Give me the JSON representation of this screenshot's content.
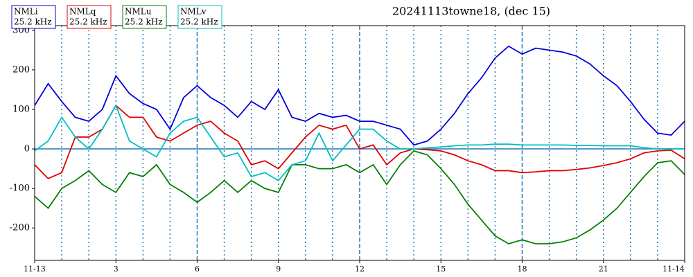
{
  "chart_data": {
    "type": "line",
    "title": "20241113towne18, (dec 15)",
    "x": [
      0,
      0.5,
      1,
      1.5,
      2,
      2.5,
      3,
      3.5,
      4,
      4.5,
      5,
      5.5,
      6,
      6.5,
      7,
      7.5,
      8,
      8.5,
      9,
      9.5,
      10,
      10.5,
      11,
      11.5,
      12,
      12.5,
      13,
      13.5,
      14,
      14.5,
      15,
      15.5,
      16,
      16.5,
      17,
      17.5,
      18,
      18.5,
      19,
      19.5,
      20,
      20.5,
      21,
      21.5,
      22,
      22.5,
      23,
      23.5,
      24
    ],
    "series": [
      {
        "name": "NMLi",
        "frequency": "25.2 kHz",
        "color": "#0000dd",
        "values": [
          110,
          165,
          120,
          80,
          70,
          100,
          185,
          140,
          115,
          100,
          50,
          130,
          160,
          130,
          110,
          80,
          120,
          100,
          150,
          80,
          70,
          90,
          80,
          85,
          70,
          70,
          60,
          50,
          10,
          20,
          50,
          90,
          140,
          180,
          230,
          260,
          240,
          255,
          250,
          245,
          235,
          215,
          185,
          160,
          120,
          75,
          40,
          35,
          70
        ]
      },
      {
        "name": "NMLq",
        "frequency": "25.2 kHz",
        "color": "#e00000",
        "values": [
          -40,
          -75,
          -60,
          30,
          30,
          50,
          110,
          80,
          80,
          30,
          20,
          40,
          60,
          70,
          40,
          20,
          -40,
          -30,
          -50,
          -10,
          30,
          60,
          50,
          60,
          0,
          10,
          -40,
          -10,
          0,
          -2,
          -5,
          -15,
          -30,
          -40,
          -55,
          -55,
          -60,
          -58,
          -55,
          -55,
          -52,
          -48,
          -42,
          -35,
          -25,
          -10,
          -5,
          -3,
          -25
        ]
      },
      {
        "name": "NMLu",
        "frequency": "25.2 kHz",
        "color": "#008000",
        "values": [
          -120,
          -150,
          -100,
          -80,
          -55,
          -90,
          -110,
          -60,
          -70,
          -40,
          -90,
          -110,
          -135,
          -110,
          -80,
          -110,
          -80,
          -100,
          -110,
          -40,
          -40,
          -50,
          -50,
          -40,
          -60,
          -40,
          -90,
          -40,
          -5,
          -15,
          -50,
          -90,
          -140,
          -180,
          -220,
          -240,
          -230,
          -240,
          -240,
          -235,
          -225,
          -205,
          -180,
          -150,
          -110,
          -70,
          -35,
          -30,
          -65
        ]
      },
      {
        "name": "NMLv",
        "frequency": "25.2 kHz",
        "color": "#00bfbf",
        "values": [
          -5,
          20,
          80,
          30,
          0,
          50,
          110,
          20,
          0,
          -20,
          40,
          70,
          80,
          30,
          -20,
          -10,
          -70,
          -60,
          -80,
          -40,
          -30,
          40,
          -30,
          10,
          50,
          50,
          20,
          0,
          0,
          3,
          5,
          8,
          10,
          10,
          12,
          12,
          10,
          10,
          10,
          10,
          9,
          9,
          8,
          8,
          8,
          3,
          0,
          0,
          0
        ]
      }
    ],
    "xlim": [
      0,
      24
    ],
    "xticks": [
      {
        "value": 0,
        "label": "11-13"
      },
      3,
      6,
      9,
      12,
      15,
      18,
      21,
      {
        "value": 24,
        "label": "11-14"
      }
    ],
    "ylim": [
      -282,
      312
    ],
    "yticks": [
      -200,
      -100,
      0,
      100,
      200,
      300
    ],
    "xgrid_dotted": [
      1,
      2,
      3,
      4,
      5,
      7,
      8,
      9,
      10,
      11,
      13,
      14,
      15,
      16,
      17,
      19,
      20,
      21,
      22,
      23
    ],
    "xgrid_dashed": [
      6,
      12,
      18
    ],
    "hline": 0,
    "grid_color": "#1f77b4"
  }
}
